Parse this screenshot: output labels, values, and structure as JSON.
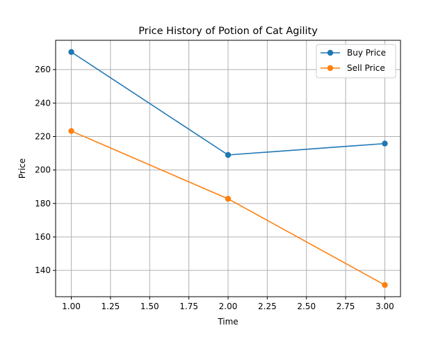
{
  "chart_data": {
    "type": "line",
    "title": "Price History of Potion of Cat Agility",
    "xlabel": "Time",
    "ylabel": "Price",
    "x": [
      1.0,
      2.0,
      3.0
    ],
    "series": [
      {
        "name": "Buy Price",
        "values": [
          270.5,
          209.0,
          215.8
        ],
        "color": "#1f77b4",
        "marker": "circle"
      },
      {
        "name": "Sell Price",
        "values": [
          223.3,
          182.8,
          131.3
        ],
        "color": "#ff7f0e",
        "marker": "circle"
      }
    ],
    "xlim": [
      0.9,
      3.1
    ],
    "ylim": [
      124.3,
      277.5
    ],
    "xticks": [
      "1.00",
      "1.25",
      "1.50",
      "1.75",
      "2.00",
      "2.25",
      "2.50",
      "2.75",
      "3.00"
    ],
    "yticks": [
      "140",
      "160",
      "180",
      "200",
      "220",
      "240",
      "260"
    ],
    "grid": true,
    "legend_position": "top-right"
  }
}
